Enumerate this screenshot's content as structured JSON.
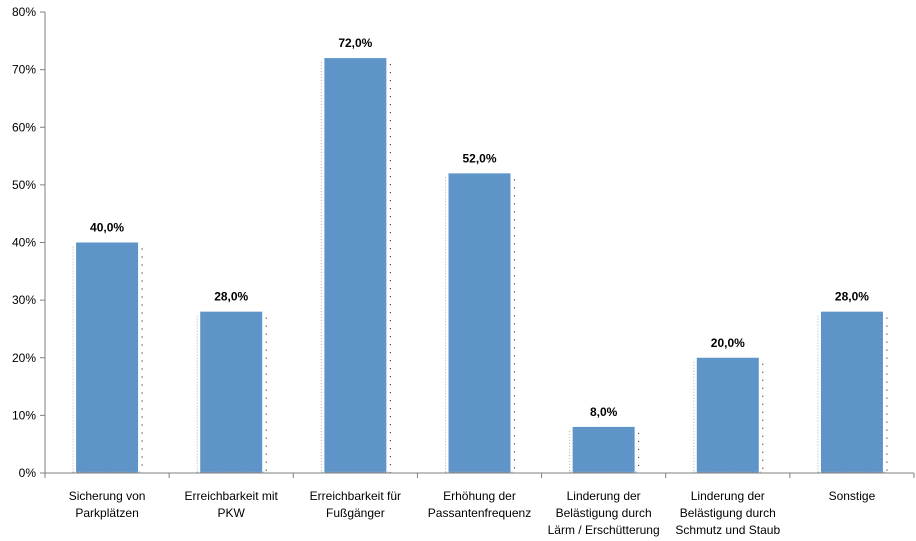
{
  "chart_data": {
    "type": "bar",
    "categories": [
      [
        "Sicherung von",
        "Parkplätzen"
      ],
      [
        "Erreichbarkeit mit",
        "PKW"
      ],
      [
        "Erreichbarkeit für",
        "Fußgänger"
      ],
      [
        "Erhöhung der",
        "Passantenfrequenz"
      ],
      [
        "Linderung der",
        "Belästigung durch",
        "Lärm / Erschütterung"
      ],
      [
        "Linderung der",
        "Belästigung durch",
        "Schmutz und Staub"
      ],
      [
        "Sonstige"
      ]
    ],
    "values": [
      40.0,
      28.0,
      72.0,
      52.0,
      8.0,
      20.0,
      28.0
    ],
    "data_labels": [
      "40,0%",
      "28,0%",
      "72,0%",
      "52,0%",
      "8,0%",
      "20,0%",
      "28,0%"
    ],
    "y_ticks": [
      "0%",
      "10%",
      "20%",
      "30%",
      "40%",
      "50%",
      "60%",
      "70%",
      "80%"
    ],
    "ylim": [
      0,
      80
    ],
    "title": "",
    "xlabel": "",
    "ylabel": "",
    "grid": false,
    "legend": "none",
    "bar_color": "#5f94c8",
    "axis_color": "#7f7f7f"
  }
}
